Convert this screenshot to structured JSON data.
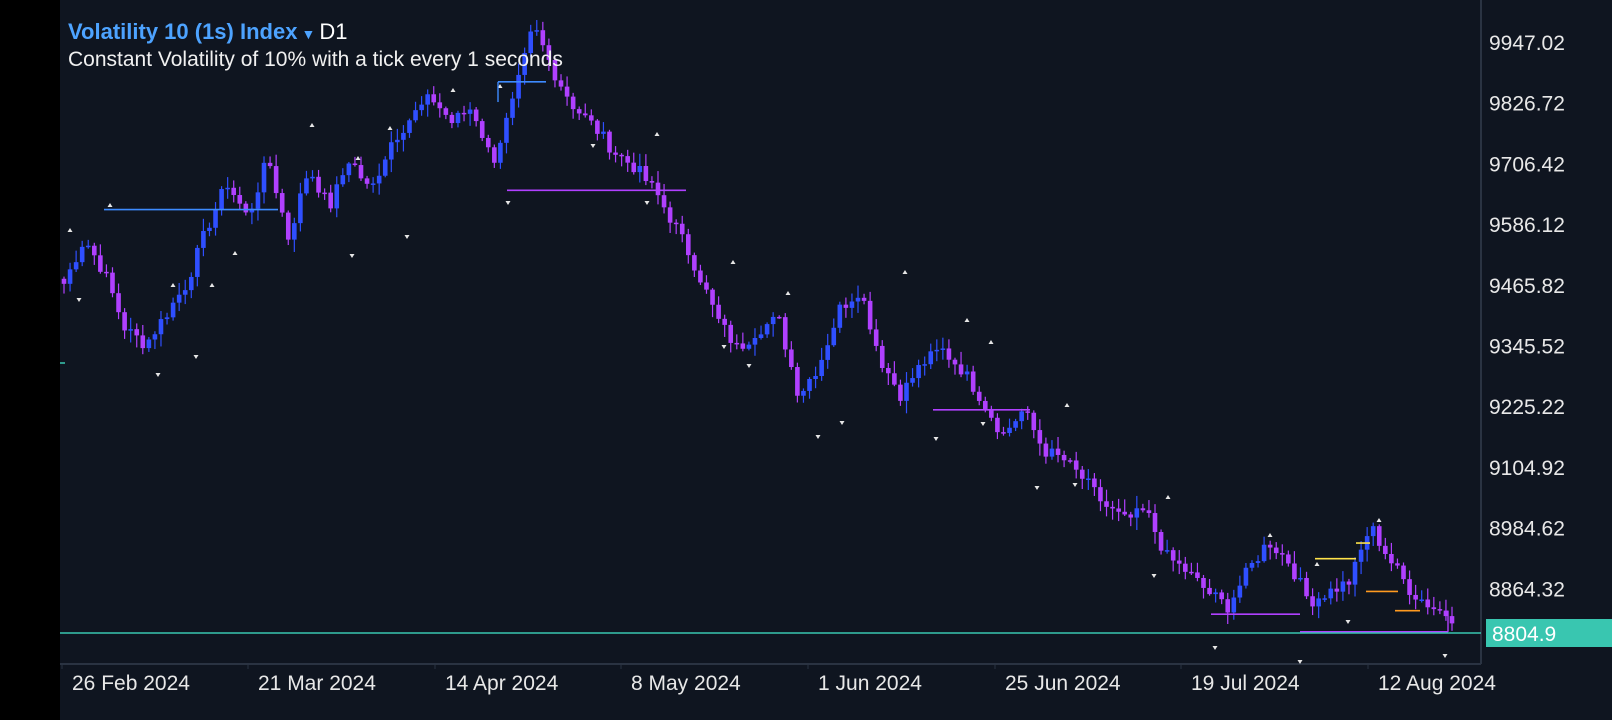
{
  "header": {
    "symbol": "Volatility 10 (1s) Index",
    "timeframe": "D1",
    "description": "Constant Volatility of 10% with a tick every 1 seconds"
  },
  "colors": {
    "background": "#0f1520",
    "bull": "#2f4fff",
    "bear": "#b040ff",
    "current_price_line": "#39c6b0",
    "text": "#e8e8e8"
  },
  "chart_data": {
    "type": "candlestick",
    "timeframe": "D1",
    "y_axis_labels": [
      "9947.02",
      "9826.72",
      "9706.42",
      "9586.12",
      "9465.82",
      "9345.52",
      "9225.22",
      "9104.92",
      "8984.62",
      "8864.32"
    ],
    "x_axis_labels": [
      "26 Feb 2024",
      "21 Mar 2024",
      "14 Apr 2024",
      "8 May 2024",
      "1 Jun 2024",
      "25 Jun 2024",
      "19 Jul 2024",
      "12 Aug 2024"
    ],
    "current_price": "8804.9",
    "ylim": [
      8770,
      10000
    ],
    "close_path": [
      9470,
      9560,
      9490,
      9380,
      9350,
      9410,
      9470,
      9580,
      9670,
      9600,
      9720,
      9560,
      9700,
      9620,
      9720,
      9650,
      9750,
      9800,
      9840,
      9790,
      9820,
      9710,
      9830,
      9980,
      9890,
      9820,
      9780,
      9730,
      9700,
      9650,
      9580,
      9500,
      9400,
      9340,
      9380,
      9400,
      9250,
      9310,
      9420,
      9460,
      9320,
      9250,
      9310,
      9340,
      9300,
      9240,
      9170,
      9220,
      9140,
      9120,
      9080,
      9030,
      9000,
      9020,
      8930,
      8900,
      8860,
      8830,
      8900,
      8960,
      8920,
      8840,
      8860,
      8880,
      8990,
      8920,
      8860,
      8830,
      8810
    ],
    "levels": [
      {
        "price": 9617,
        "color": "#3d8bff"
      },
      {
        "price": 9870,
        "color": "#3d8bff"
      },
      {
        "price": 9655,
        "color": "#b040ff"
      },
      {
        "price": 9220,
        "color": "#b040ff"
      },
      {
        "price": 8815,
        "color": "#b040ff"
      },
      {
        "price": 8780,
        "color": "#b040ff"
      },
      {
        "price": 8925,
        "color": "#ffe34a"
      },
      {
        "price": 8956,
        "color": "#ffe34a"
      },
      {
        "price": 8860,
        "color": "#ff9a1f"
      },
      {
        "price": 8822,
        "color": "#ff9a1f"
      }
    ]
  }
}
